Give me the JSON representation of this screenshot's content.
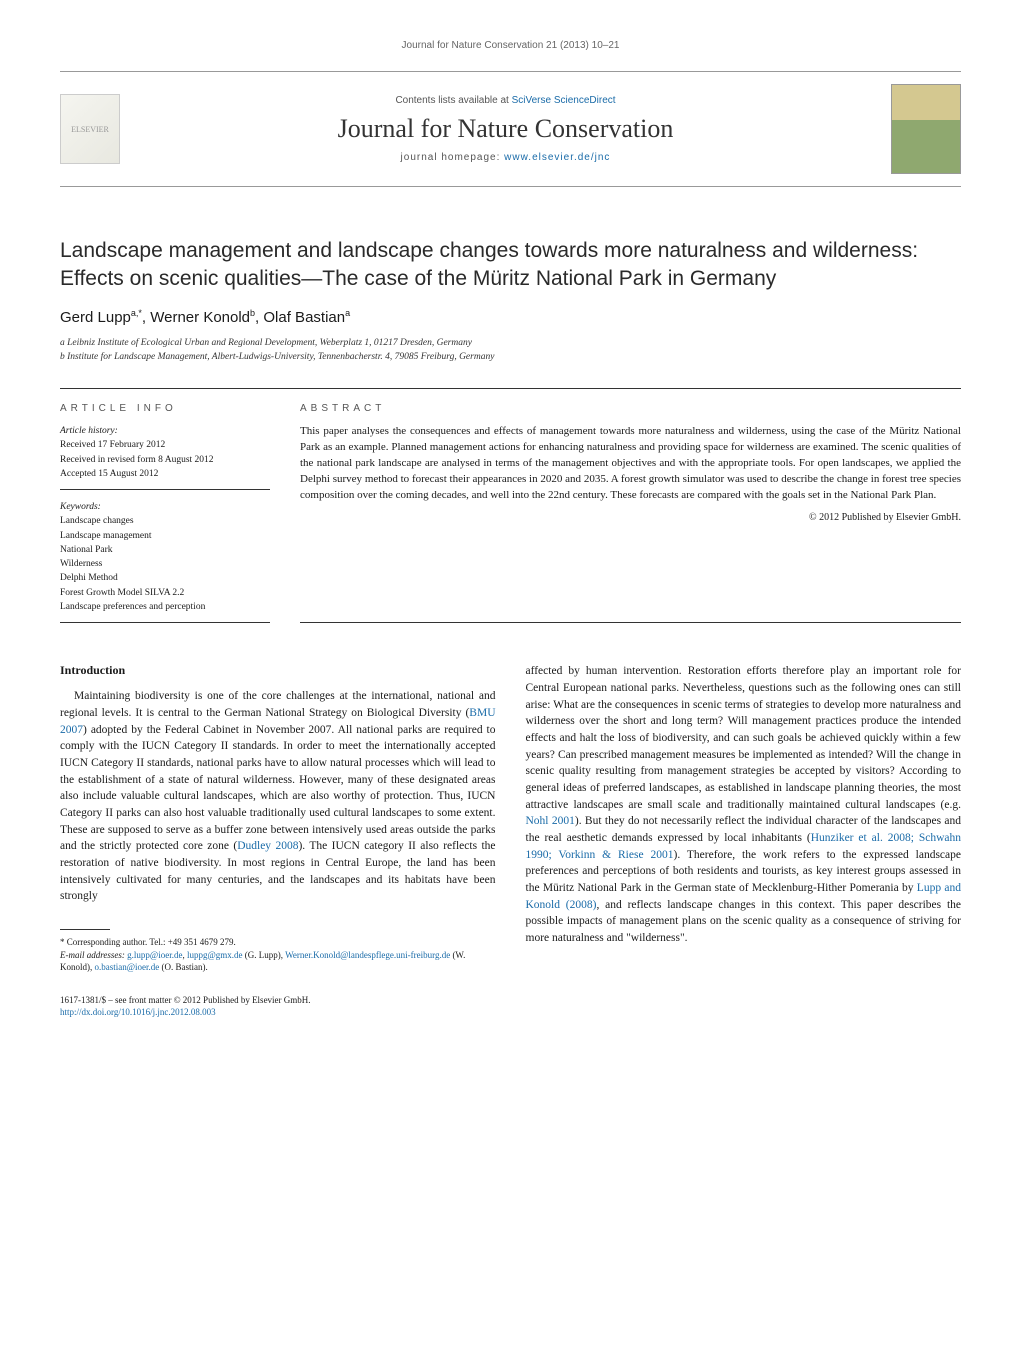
{
  "header_citation": "Journal for Nature Conservation 21 (2013) 10–21",
  "masthead": {
    "contents_prefix": "Contents lists available at ",
    "contents_link": "SciVerse ScienceDirect",
    "journal_name": "Journal for Nature Conservation",
    "homepage_prefix": "journal homepage: ",
    "homepage_link": "www.elsevier.de/jnc",
    "elsevier_alt": "ELSEVIER"
  },
  "title": "Landscape management and landscape changes towards more naturalness and wilderness: Effects on scenic qualities—The case of the Müritz National Park in Germany",
  "authors_html": "Gerd Lupp<sup>a,*</sup>, Werner Konold<sup>b</sup>, Olaf Bastian<sup>a</sup>",
  "affiliations": {
    "a": "a Leibniz Institute of Ecological Urban and Regional Development, Weberplatz 1, 01217 Dresden, Germany",
    "b": "b Institute for Landscape Management, Albert-Ludwigs-University, Tennenbacherstr. 4, 79085 Freiburg, Germany"
  },
  "article_info": {
    "label": "ARTICLE INFO",
    "history_hdr": "Article history:",
    "received": "Received 17 February 2012",
    "revised": "Received in revised form 8 August 2012",
    "accepted": "Accepted 15 August 2012",
    "keywords_hdr": "Keywords:",
    "keywords": [
      "Landscape changes",
      "Landscape management",
      "National Park",
      "Wilderness",
      "Delphi Method",
      "Forest Growth Model SILVA 2.2",
      "Landscape preferences and perception"
    ]
  },
  "abstract": {
    "label": "ABSTRACT",
    "text": "This paper analyses the consequences and effects of management towards more naturalness and wilderness, using the case of the Müritz National Park as an example. Planned management actions for enhancing naturalness and providing space for wilderness are examined. The scenic qualities of the national park landscape are analysed in terms of the management objectives and with the appropriate tools. For open landscapes, we applied the Delphi survey method to forecast their appearances in 2020 and 2035. A forest growth simulator was used to describe the change in forest tree species composition over the coming decades, and well into the 22nd century. These forecasts are compared with the goals set in the National Park Plan.",
    "copyright": "© 2012 Published by Elsevier GmbH."
  },
  "body": {
    "intro_heading": "Introduction",
    "col1_p1_pre": "Maintaining biodiversity is one of the core challenges at the international, national and regional levels. It is central to the German National Strategy on Biological Diversity (",
    "col1_link1": "BMU 2007",
    "col1_p1_mid": ") adopted by the Federal Cabinet in November 2007. All national parks are required to comply with the IUCN Category II standards. In order to meet the internationally accepted IUCN Category II standards, national parks have to allow natural processes which will lead to the establishment of a state of natural wilderness. However, many of these designated areas also include valuable cultural landscapes, which are also worthy of protection. Thus, IUCN Category II parks can also host valuable traditionally used cultural landscapes to some extent. These are supposed to serve as a buffer zone between intensively used areas outside the parks and the strictly protected core zone (",
    "col1_link2": "Dudley 2008",
    "col1_p1_post": "). The IUCN category II also reflects the restoration of native biodiversity. In most regions in Central Europe, the land has been intensively cultivated for many centuries, and the landscapes and its habitats have been strongly",
    "col2_p1_pre": "affected by human intervention. Restoration efforts therefore play an important role for Central European national parks. Nevertheless, questions such as the following ones can still arise: What are the consequences in scenic terms of strategies to develop more naturalness and wilderness over the short and long term? Will management practices produce the intended effects and halt the loss of biodiversity, and can such goals be achieved quickly within a few years? Can prescribed management measures be implemented as intended? Will the change in scenic quality resulting from management strategies be accepted by visitors? According to general ideas of preferred landscapes, as established in landscape planning theories, the most attractive landscapes are small scale and traditionally maintained cultural landscapes (e.g. ",
    "col2_link1": "Nohl 2001",
    "col2_p1_mid1": "). But they do not necessarily reflect the individual character of the landscapes and the real aesthetic demands expressed by local inhabitants (",
    "col2_link2": "Hunziker et al. 2008; Schwahn 1990; Vorkinn & Riese 2001",
    "col2_p1_mid2": "). Therefore, the work refers to the expressed landscape preferences and perceptions of both residents and tourists, as key interest groups assessed in the Müritz National Park in the German state of Mecklenburg-Hither Pomerania by ",
    "col2_link3": "Lupp and Konold (2008)",
    "col2_p1_post": ", and reflects landscape changes in this context. This paper describes the possible impacts of management plans on the scenic quality as a consequence of striving for more naturalness and \"wilderness\"."
  },
  "footnote": {
    "corr": "* Corresponding author. Tel.: +49 351 4679 279.",
    "email_label": "E-mail addresses: ",
    "emails": [
      {
        "addr": "g.lupp@ioer.de",
        "who": ""
      },
      {
        "addr": "luppg@gmx.de",
        "who": " (G. Lupp),"
      },
      {
        "addr": "Werner.Konold@landespflege.uni-freiburg.de",
        "who": " (W. Konold),"
      },
      {
        "addr": "o.bastian@ioer.de",
        "who": " (O. Bastian)."
      }
    ]
  },
  "footer": {
    "issn": "1617-1381/$ – see front matter © 2012 Published by Elsevier GmbH.",
    "doi": "http://dx.doi.org/10.1016/j.jnc.2012.08.003"
  },
  "colors": {
    "link": "#1a6ba8",
    "text": "#1a1a1a",
    "rule": "#333333",
    "muted": "#666666"
  }
}
